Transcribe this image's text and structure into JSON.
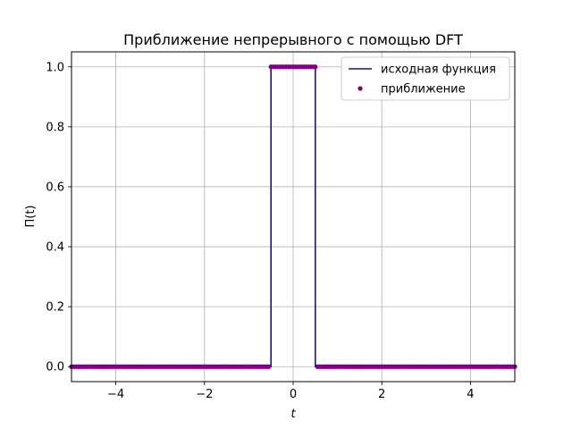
{
  "chart_data": {
    "type": "line",
    "title": "Приближение непрерывного с помощью DFT",
    "xlabel": "t",
    "ylabel": "Π(t)",
    "xlim": [
      -5,
      5
    ],
    "ylim": [
      -0.05,
      1.05
    ],
    "x_ticks": [
      -4,
      -2,
      0,
      2,
      4
    ],
    "x_tick_labels": [
      "−4",
      "−2",
      "0",
      "2",
      "4"
    ],
    "y_ticks": [
      0.0,
      0.2,
      0.4,
      0.6,
      0.8,
      1.0
    ],
    "y_tick_labels": [
      "0.0",
      "0.2",
      "0.4",
      "0.6",
      "0.8",
      "1.0"
    ],
    "grid": true,
    "legend_position": "top-right",
    "series": [
      {
        "name": "исходная функция",
        "kind": "line",
        "color": "#191970",
        "x": [
          -5,
          -0.5,
          -0.5,
          0.5,
          0.5,
          5
        ],
        "y": [
          0,
          0,
          1,
          1,
          0,
          0
        ]
      },
      {
        "name": "приближение",
        "kind": "scatter",
        "color": "#800080",
        "x_range": [
          -5,
          5
        ],
        "step": 0.05,
        "pulse_halfwidth": 0.5,
        "inside_value": 1,
        "outside_value": 0
      }
    ]
  }
}
